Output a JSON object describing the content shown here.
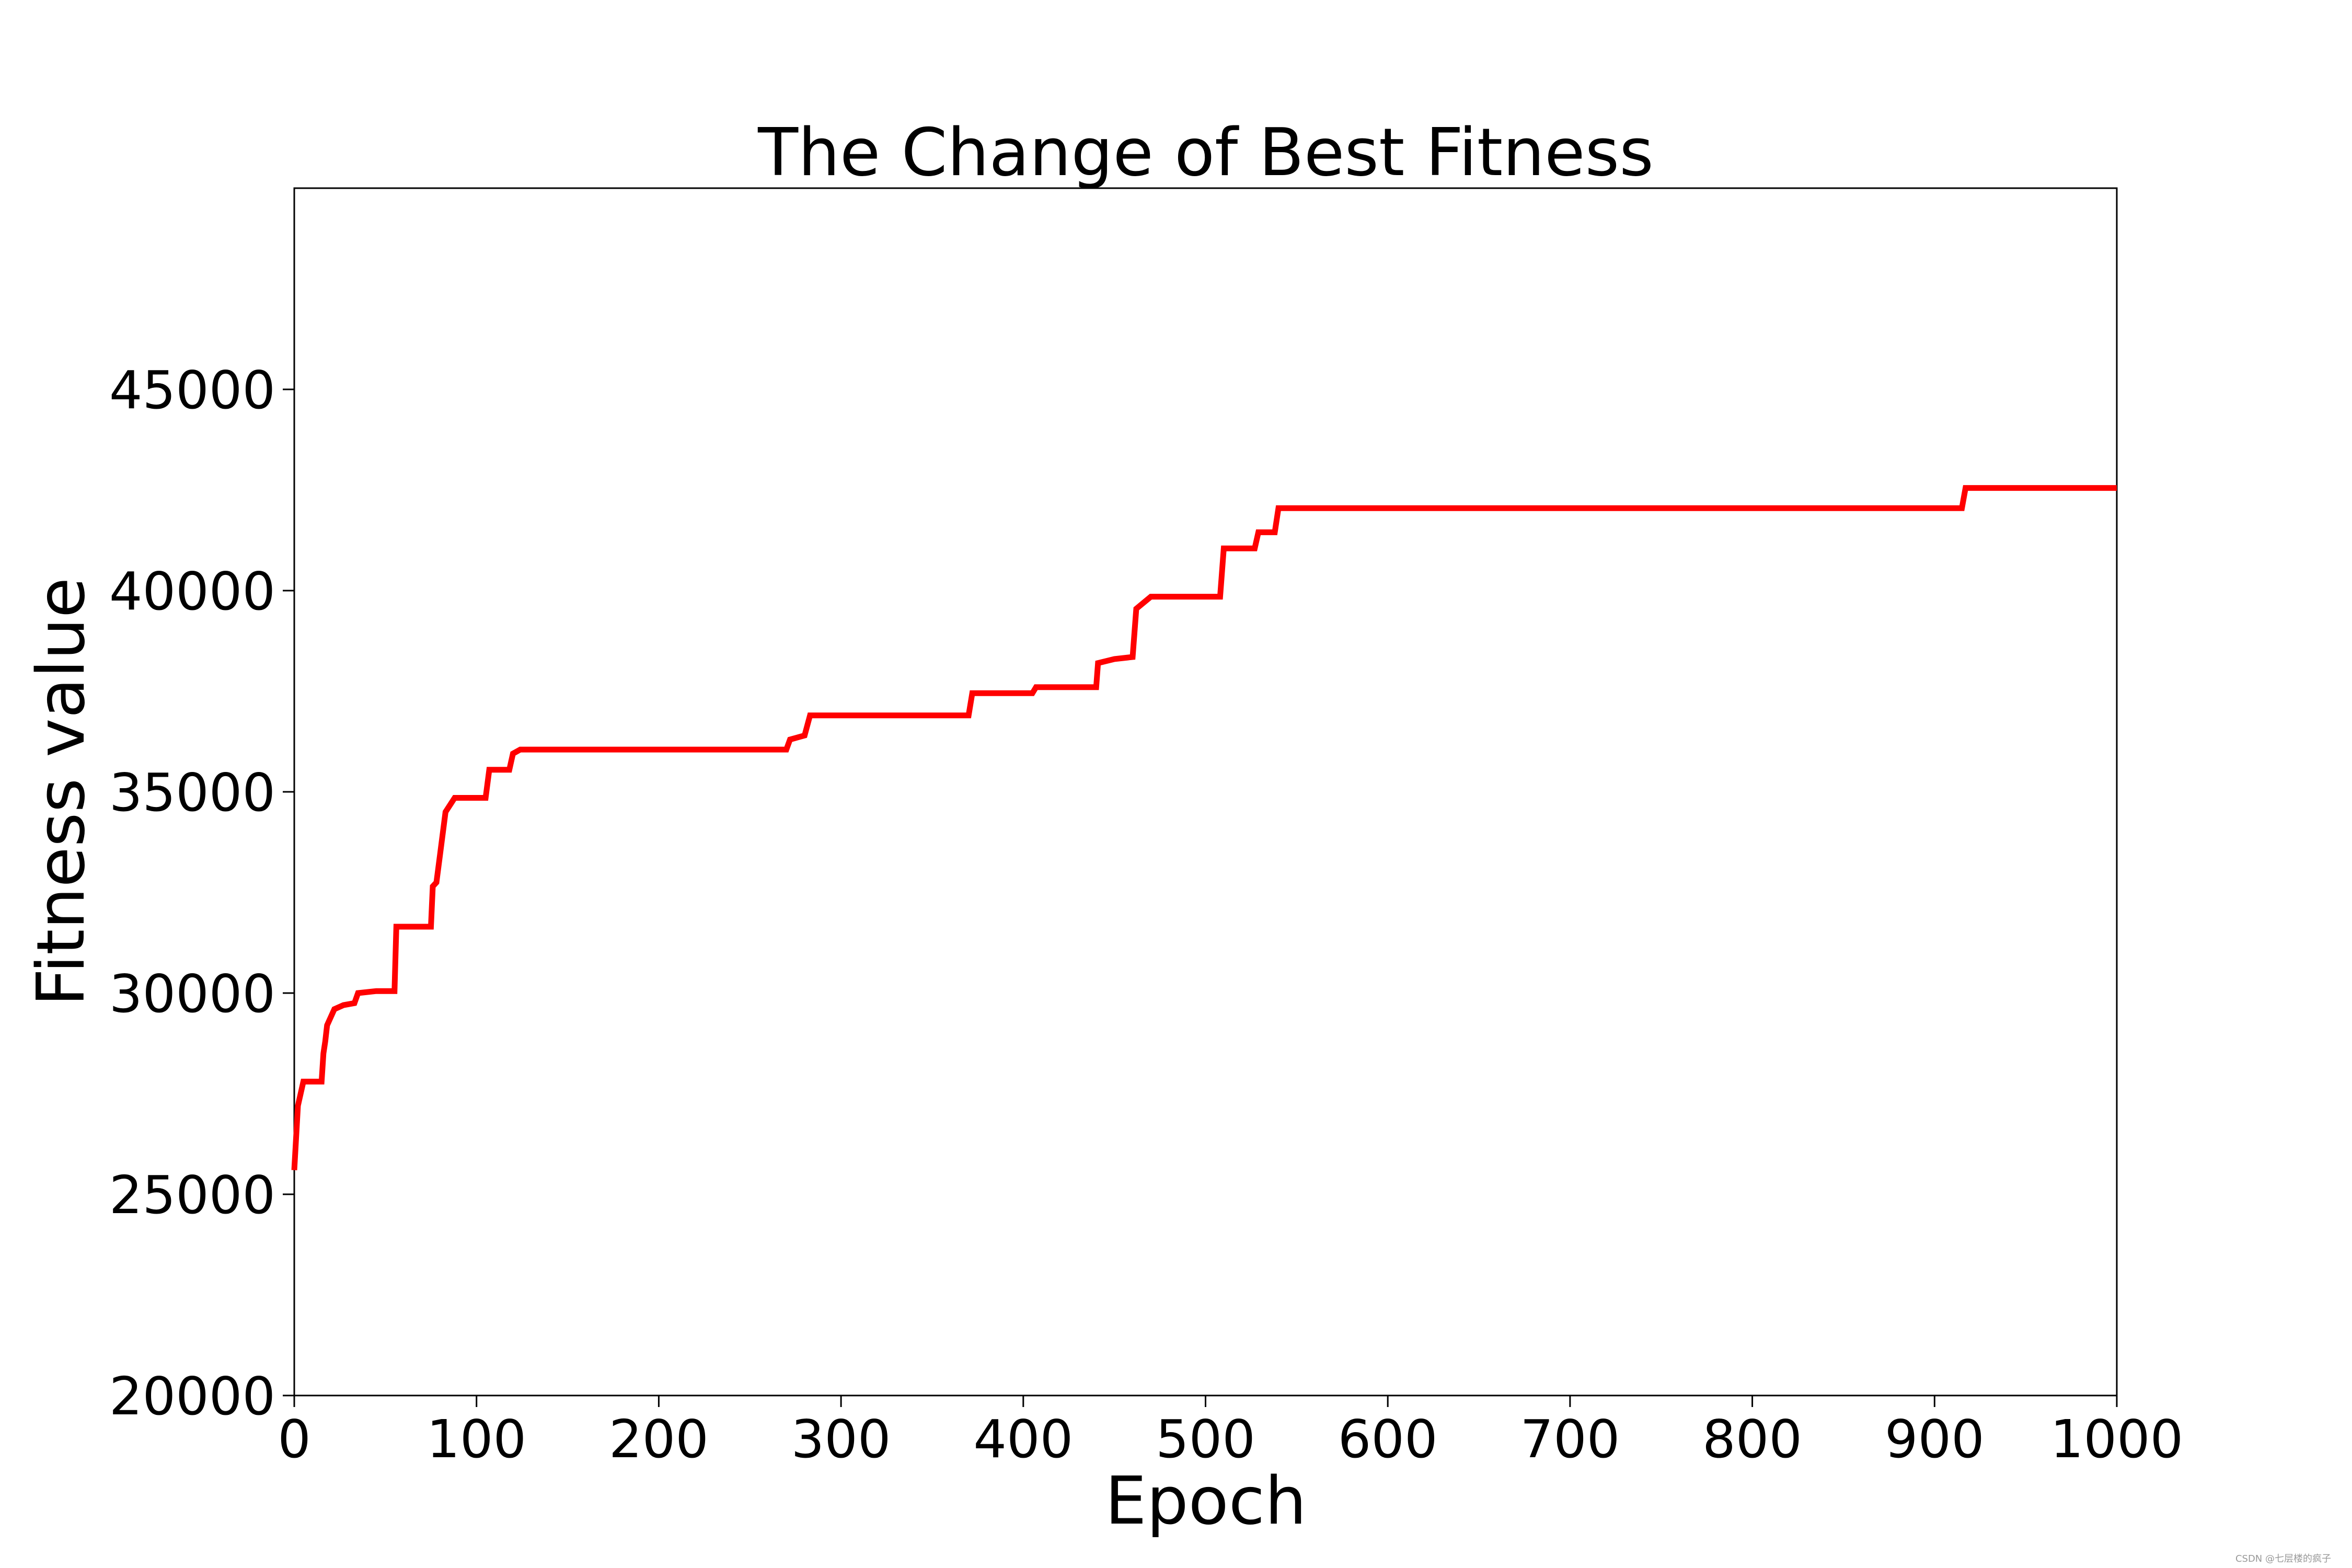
{
  "chart_data": {
    "type": "line",
    "title": "The Change of Best Fitness",
    "xlabel": "Epoch",
    "ylabel": "Fitness value",
    "xlim": [
      0,
      1000
    ],
    "ylim": [
      20000,
      50000
    ],
    "xticks": [
      "0",
      "100",
      "200",
      "300",
      "400",
      "500",
      "600",
      "700",
      "800",
      "900",
      "1000"
    ],
    "yticks": [
      "20000",
      "25000",
      "30000",
      "35000",
      "40000",
      "45000"
    ],
    "grid": false,
    "legend": "none",
    "series": [
      {
        "color": "#ff0000",
        "step": true,
        "points": [
          [
            0,
            25600
          ],
          [
            2,
            27200
          ],
          [
            5,
            27800
          ],
          [
            15,
            27800
          ],
          [
            16,
            28500
          ],
          [
            17,
            28800
          ],
          [
            18,
            29200
          ],
          [
            22,
            29600
          ],
          [
            27,
            29700
          ],
          [
            33,
            29750
          ],
          [
            35,
            30000
          ],
          [
            45,
            30050
          ],
          [
            55,
            30050
          ],
          [
            56,
            31650
          ],
          [
            75,
            31650
          ],
          [
            76,
            32650
          ],
          [
            78,
            32750
          ],
          [
            80,
            33450
          ],
          [
            83,
            34500
          ],
          [
            88,
            34850
          ],
          [
            105,
            34850
          ],
          [
            107,
            35550
          ],
          [
            118,
            35550
          ],
          [
            120,
            35950
          ],
          [
            124,
            36050
          ],
          [
            270,
            36050
          ],
          [
            272,
            36300
          ],
          [
            280,
            36400
          ],
          [
            283,
            36900
          ],
          [
            370,
            36900
          ],
          [
            372,
            37450
          ],
          [
            405,
            37450
          ],
          [
            407,
            37600
          ],
          [
            440,
            37600
          ],
          [
            441,
            38200
          ],
          [
            450,
            38300
          ],
          [
            460,
            38350
          ],
          [
            462,
            39550
          ],
          [
            470,
            39850
          ],
          [
            508,
            39850
          ],
          [
            510,
            41050
          ],
          [
            527,
            41050
          ],
          [
            529,
            41450
          ],
          [
            538,
            41450
          ],
          [
            540,
            42050
          ],
          [
            915,
            42050
          ],
          [
            917,
            42550
          ],
          [
            1000,
            42550
          ]
        ]
      }
    ]
  },
  "watermark": "CSDN @七层楼的疯子"
}
